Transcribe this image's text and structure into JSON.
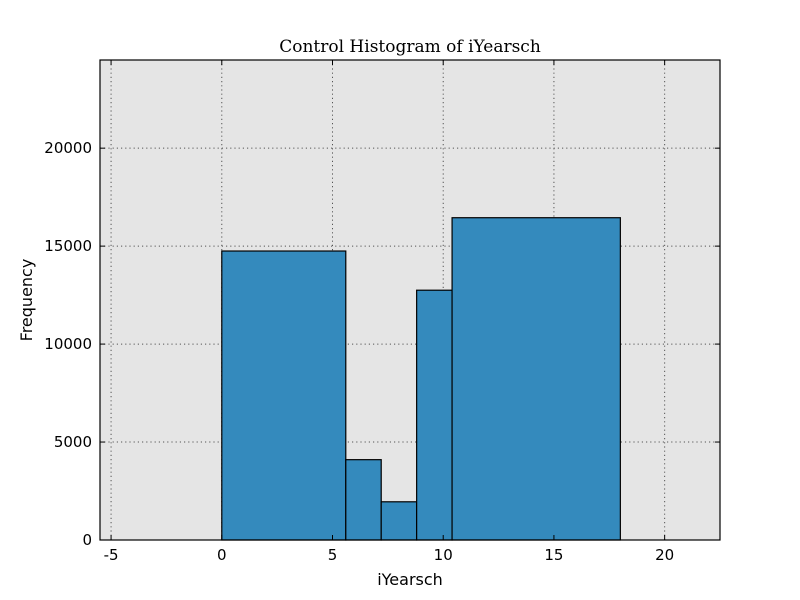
{
  "chart_data": {
    "type": "bar",
    "title": "Control Histogram of iYearsch",
    "xlabel": "iYearsch",
    "ylabel": "Frequency",
    "xlim": [
      -5.5,
      22.5
    ],
    "ylim": [
      0,
      24500
    ],
    "xticks": [
      -5,
      0,
      5,
      10,
      15,
      20
    ],
    "yticks": [
      0,
      5000,
      10000,
      15000,
      20000
    ],
    "grid": true,
    "bar_color": "#348abd",
    "background_color": "#e5e5e5",
    "bins": [
      {
        "start": 0,
        "end": 5.6,
        "value": 14750
      },
      {
        "start": 5.6,
        "end": 7.2,
        "value": 4100
      },
      {
        "start": 7.2,
        "end": 8.8,
        "value": 1950
      },
      {
        "start": 8.8,
        "end": 10.4,
        "value": 12750
      },
      {
        "start": 10.4,
        "end": 18.0,
        "value": 16450
      }
    ]
  }
}
